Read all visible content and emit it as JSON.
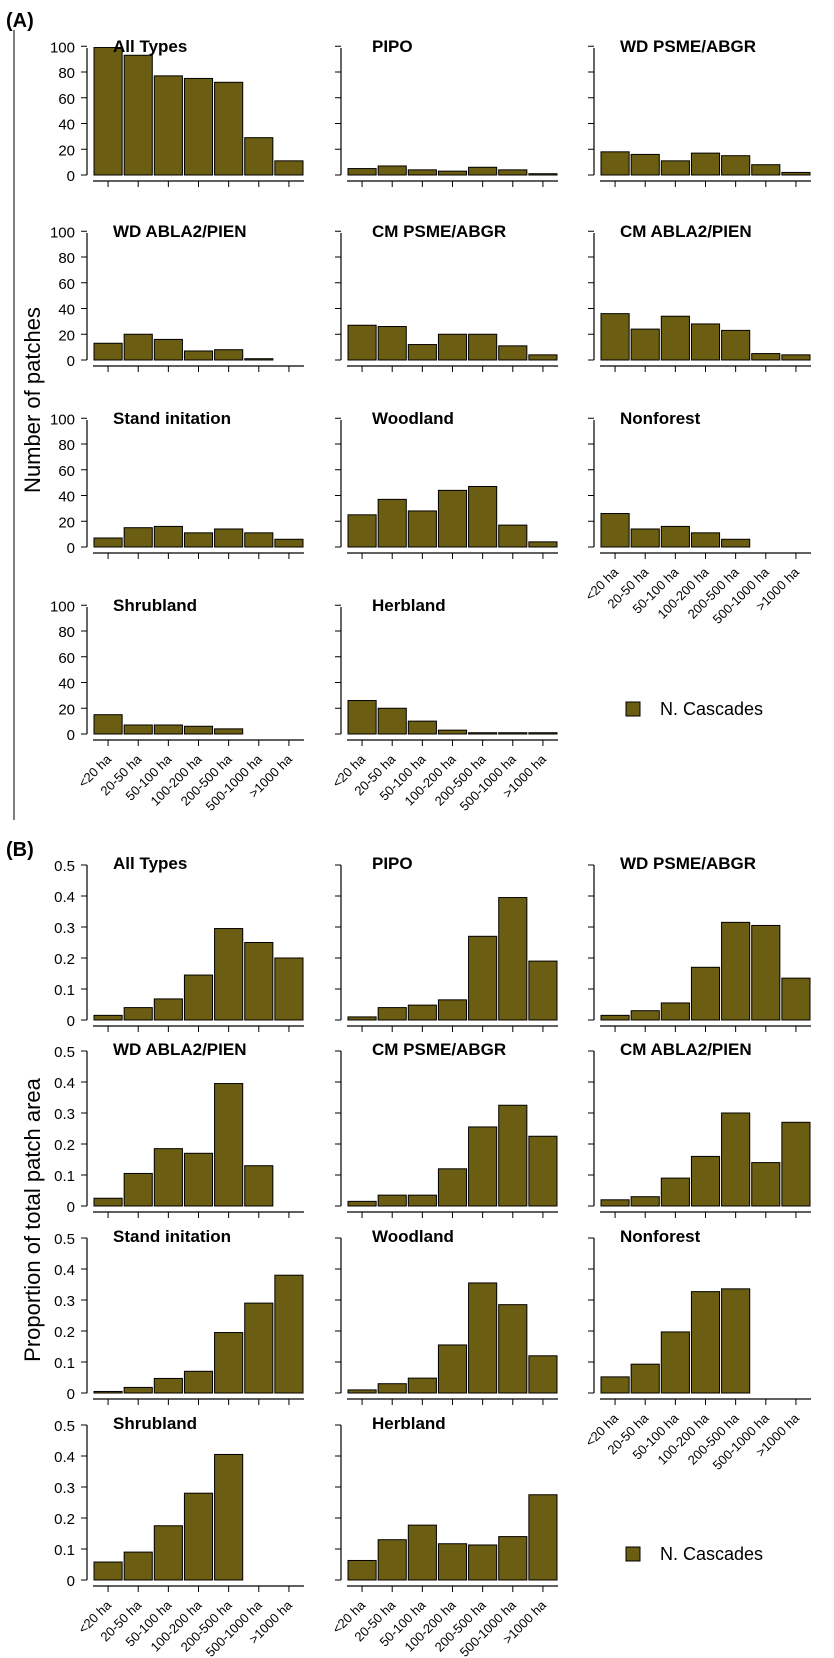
{
  "panel_labels": {
    "a": "(A)",
    "b": "(B)"
  },
  "ylabels": {
    "a": "Number of patches",
    "b": "Proportion of total patch area"
  },
  "legend": {
    "label": "N. Cascades",
    "color": "#6b5d12"
  },
  "categories": [
    "<20 ha",
    "20-50 ha",
    "50-100 ha",
    "100-200 ha",
    "200-500 ha",
    "500-1000 ha",
    ">1000 ha"
  ],
  "chart_data": [
    {
      "type": "bar",
      "panel": "A",
      "ylabel": "Number of patches",
      "ylim": [
        0,
        120
      ],
      "yticks": [
        "0",
        "20",
        "40",
        "60",
        "80",
        "100"
      ],
      "categories": [
        "<20 ha",
        "20-50 ha",
        "50-100 ha",
        "100-200 ha",
        "200-500 ha",
        "500-1000 ha",
        ">1000 ha"
      ],
      "subplots": [
        {
          "title": "All Types",
          "values": [
            99,
            93,
            77,
            75,
            72,
            29,
            11
          ]
        },
        {
          "title": "PIPO",
          "values": [
            5,
            7,
            4,
            3,
            6,
            4,
            1
          ]
        },
        {
          "title": "WD PSME/ABGR",
          "values": [
            18,
            16,
            11,
            17,
            15,
            8,
            2
          ]
        },
        {
          "title": "WD ABLA2/PIEN",
          "values": [
            13,
            20,
            16,
            7,
            8,
            1,
            0
          ]
        },
        {
          "title": "CM PSME/ABGR",
          "values": [
            27,
            26,
            12,
            20,
            20,
            11,
            4
          ]
        },
        {
          "title": "CM ABLA2/PIEN",
          "values": [
            36,
            24,
            34,
            28,
            23,
            5,
            4
          ]
        },
        {
          "title": "Stand initation",
          "values": [
            7,
            15,
            16,
            11,
            14,
            11,
            6
          ]
        },
        {
          "title": "Woodland",
          "values": [
            25,
            37,
            28,
            44,
            47,
            17,
            4
          ]
        },
        {
          "title": "Nonforest",
          "values": [
            26,
            14,
            16,
            11,
            6,
            0,
            0
          ]
        },
        {
          "title": "Shrubland",
          "values": [
            15,
            7,
            7,
            6,
            4,
            0,
            0
          ]
        },
        {
          "title": "Herbland",
          "values": [
            26,
            20,
            10,
            3,
            1,
            1,
            1
          ]
        }
      ]
    },
    {
      "type": "bar",
      "panel": "B",
      "ylabel": "Proportion of total patch area",
      "ylim": [
        0,
        0.5
      ],
      "yticks": [
        "0",
        "0.1",
        "0.2",
        "0.3",
        "0.4",
        "0.5"
      ],
      "categories": [
        "<20 ha",
        "20-50 ha",
        "50-100 ha",
        "100-200 ha",
        "200-500 ha",
        "500-1000 ha",
        ">1000 ha"
      ],
      "subplots": [
        {
          "title": "All Types",
          "values": [
            0.015,
            0.04,
            0.068,
            0.145,
            0.295,
            0.25,
            0.2
          ]
        },
        {
          "title": "PIPO",
          "values": [
            0.01,
            0.04,
            0.048,
            0.065,
            0.27,
            0.395,
            0.19
          ]
        },
        {
          "title": "WD PSME/ABGR",
          "values": [
            0.015,
            0.03,
            0.055,
            0.17,
            0.315,
            0.305,
            0.135
          ]
        },
        {
          "title": "WD ABLA2/PIEN",
          "values": [
            0.025,
            0.105,
            0.185,
            0.17,
            0.395,
            0.13,
            0
          ]
        },
        {
          "title": "CM PSME/ABGR",
          "values": [
            0.015,
            0.035,
            0.035,
            0.12,
            0.255,
            0.325,
            0.225
          ]
        },
        {
          "title": "CM ABLA2/PIEN",
          "values": [
            0.02,
            0.03,
            0.09,
            0.16,
            0.3,
            0.14,
            0.27
          ]
        },
        {
          "title": "Stand initation",
          "values": [
            0.005,
            0.018,
            0.047,
            0.07,
            0.195,
            0.29,
            0.38
          ]
        },
        {
          "title": "Woodland",
          "values": [
            0.01,
            0.03,
            0.048,
            0.155,
            0.355,
            0.285,
            0.12
          ]
        },
        {
          "title": "Nonforest",
          "values": [
            0.052,
            0.093,
            0.197,
            0.327,
            0.336,
            0,
            0
          ]
        },
        {
          "title": "Shrubland",
          "values": [
            0.058,
            0.09,
            0.175,
            0.28,
            0.405,
            0,
            0
          ]
        },
        {
          "title": "Herbland",
          "values": [
            0.063,
            0.13,
            0.177,
            0.117,
            0.113,
            0.14,
            0.275
          ]
        }
      ]
    }
  ]
}
